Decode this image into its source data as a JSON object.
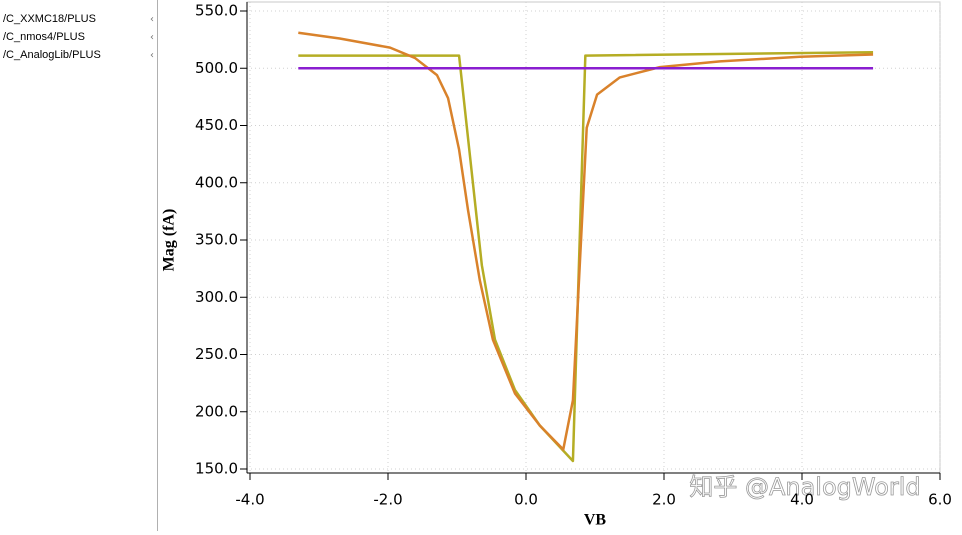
{
  "chart_data": {
    "type": "line",
    "x_label": "VB",
    "y_label": "Mag (fA)",
    "watermark": "知乎 @AnalogWorld",
    "xlim": [
      -4,
      6
    ],
    "xticks": [
      {
        "value": -4,
        "label": "-4.0"
      },
      {
        "value": -2,
        "label": "-2.0"
      },
      {
        "value": 0,
        "label": "0.0"
      },
      {
        "value": 2,
        "label": "2.0"
      },
      {
        "value": 4,
        "label": "4.0"
      },
      {
        "value": 6,
        "label": "6.0"
      }
    ],
    "ylim": [
      150,
      550
    ],
    "yticks": [
      {
        "value": 150,
        "label": "150.0"
      },
      {
        "value": 200,
        "label": "200.0"
      },
      {
        "value": 250,
        "label": "250.0"
      },
      {
        "value": 300,
        "label": "300.0"
      },
      {
        "value": 350,
        "label": "350.0"
      },
      {
        "value": 400,
        "label": "400.0"
      },
      {
        "value": 450,
        "label": "450.0"
      },
      {
        "value": 500,
        "label": "500.0"
      },
      {
        "value": 550,
        "label": "550.0"
      }
    ],
    "grid": true,
    "series": [
      {
        "name": "/C_XXMC18/PLUS",
        "color": "#d9822b",
        "x": [
          -3.3,
          -2.7,
          -1.97,
          -1.61,
          -1.29,
          -1.13,
          -0.97,
          -0.84,
          -0.67,
          -0.48,
          -0.16,
          0.2,
          0.54,
          0.68,
          0.88,
          1.03,
          1.36,
          1.94,
          2.81,
          3.97,
          5.03
        ],
        "values": [
          531,
          526,
          518,
          509,
          494,
          474,
          429,
          376,
          315,
          263,
          216,
          188,
          167,
          210,
          448,
          477,
          492,
          501,
          506,
          510,
          512
        ]
      },
      {
        "name": "/C_nmos4/PLUS",
        "color": "#b5ad24",
        "x": [
          -3.3,
          -0.97,
          -0.64,
          -0.45,
          -0.16,
          0.2,
          0.68,
          0.86,
          5.03
        ],
        "values": [
          511,
          511,
          328,
          263,
          219,
          188,
          157,
          511,
          514
        ]
      },
      {
        "name": "/C_AnalogLib/PLUS",
        "color": "#8a1ed0",
        "x": [
          -3.3,
          5.03
        ],
        "values": [
          500,
          500
        ]
      }
    ]
  }
}
